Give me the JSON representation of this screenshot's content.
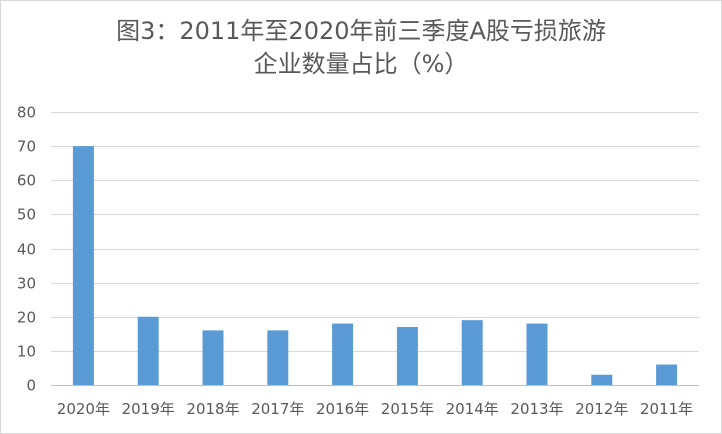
{
  "chart_data": {
    "type": "bar",
    "title_lines": [
      "图3：2011年至2020年前三季度A股亏损旅游",
      "企业数量占比（%）"
    ],
    "categories": [
      "2020年",
      "2019年",
      "2018年",
      "2017年",
      "2016年",
      "2015年",
      "2014年",
      "2013年",
      "2012年",
      "2011年"
    ],
    "values": [
      70,
      20,
      16,
      16,
      18,
      17,
      19,
      18,
      3,
      6
    ],
    "ylim": [
      0,
      80
    ],
    "yticks": [
      0,
      10,
      20,
      30,
      40,
      50,
      60,
      70,
      80
    ],
    "xlabel": "",
    "ylabel": "",
    "grid": true,
    "legend": "none",
    "bar_color": "#5b9bd5",
    "grid_color": "#d9d9d9",
    "text_color": "#595959"
  }
}
